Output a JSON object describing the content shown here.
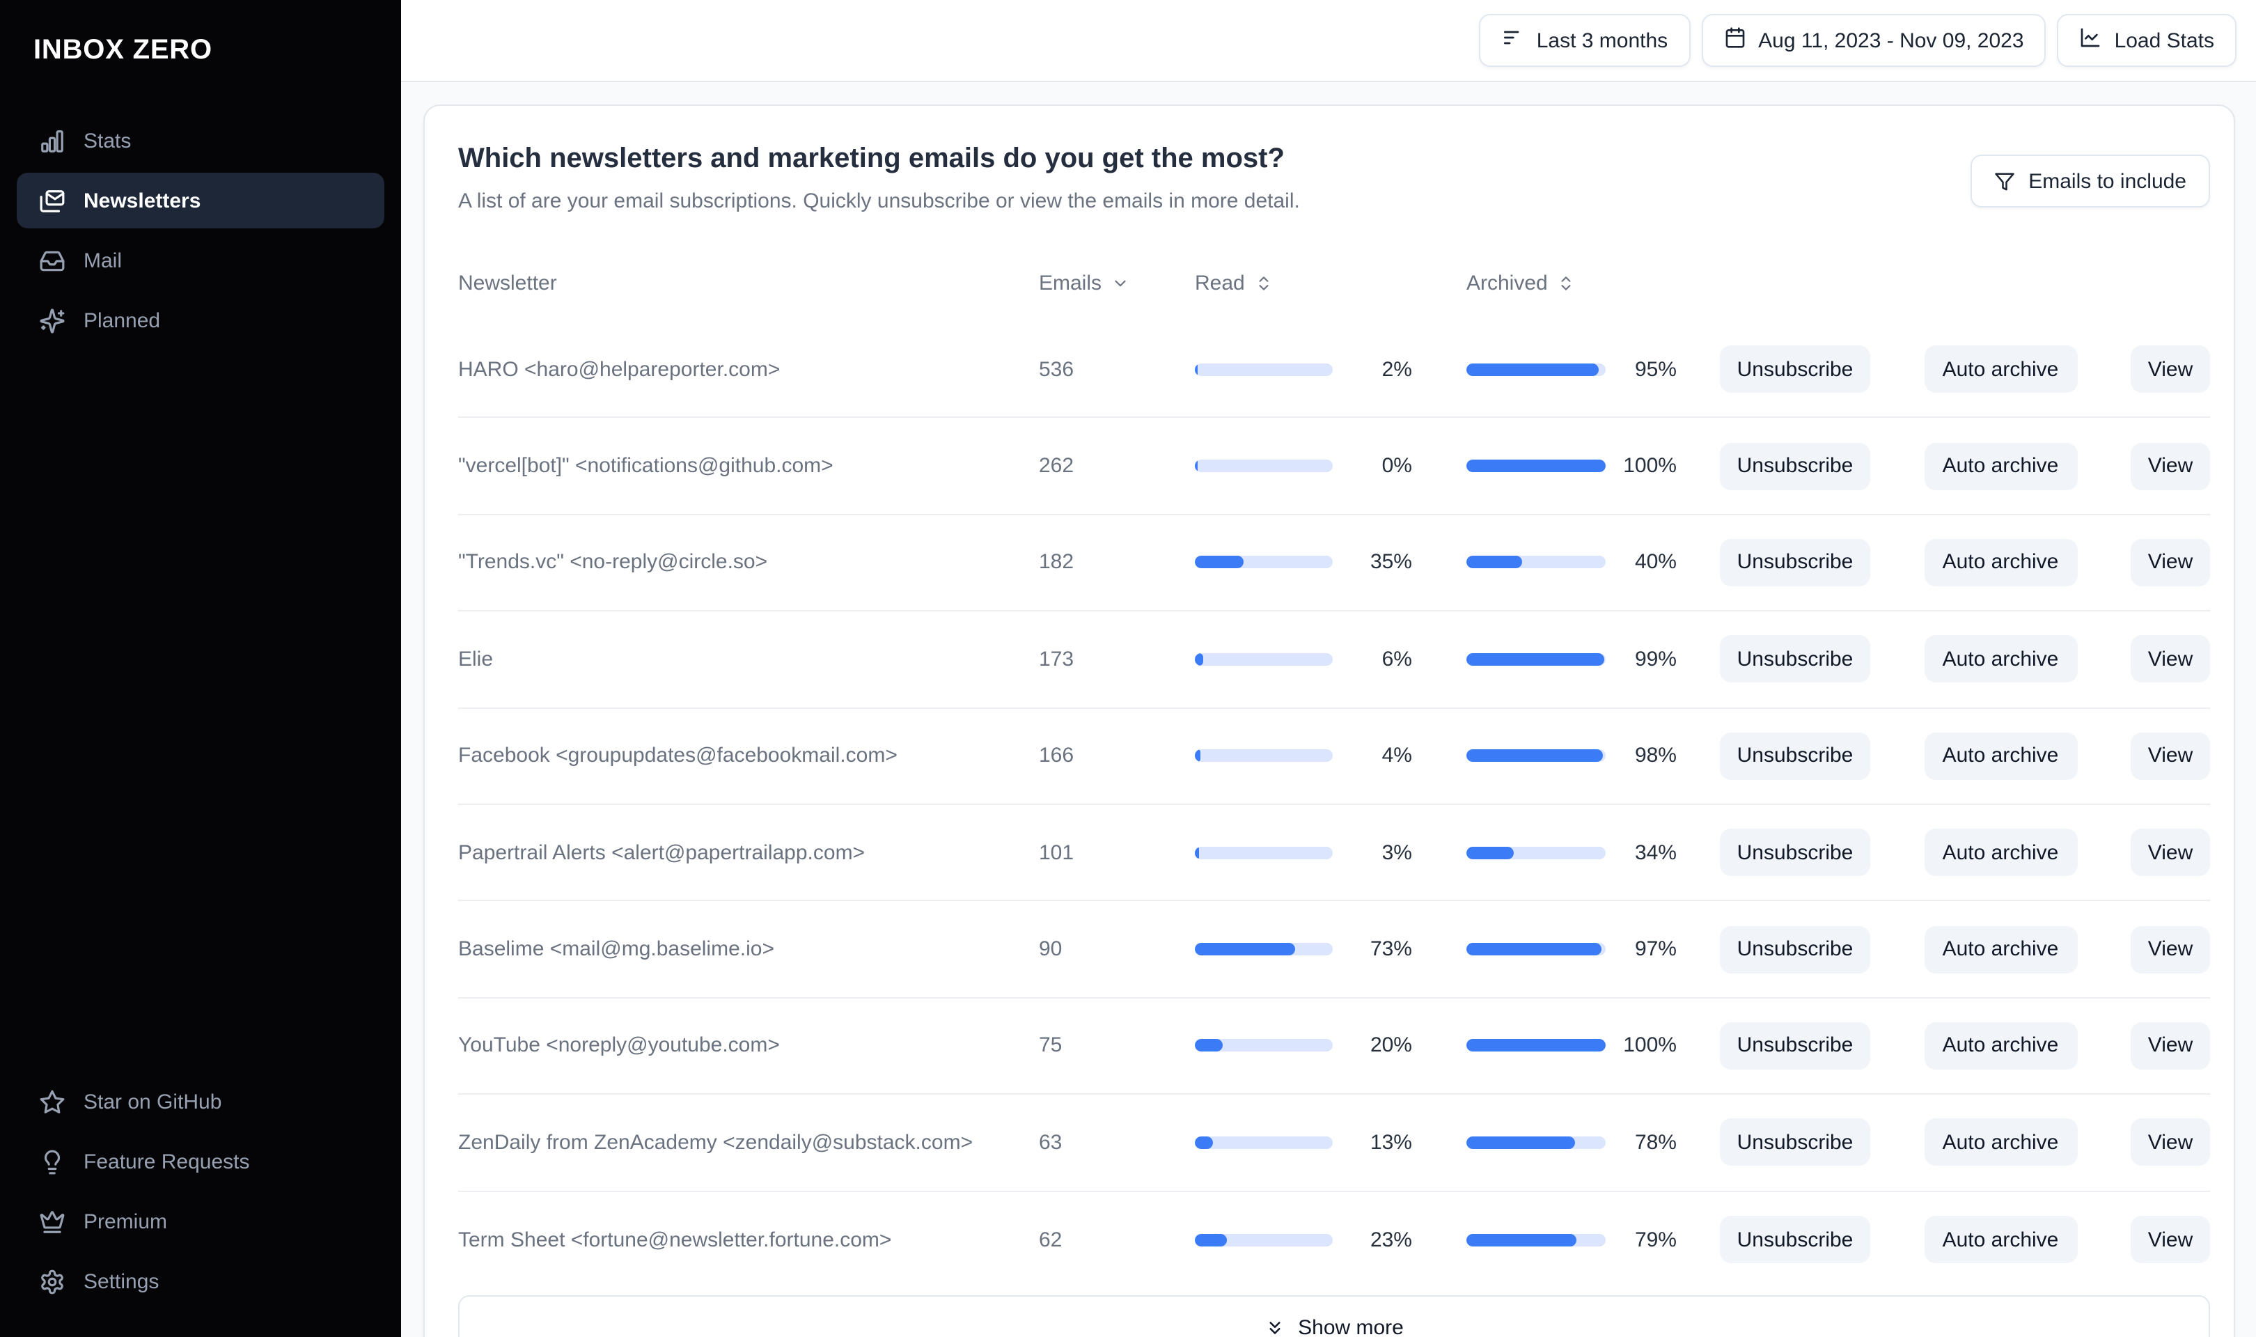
{
  "brand": "INBOX ZERO",
  "sidebar": {
    "items": [
      {
        "label": "Stats",
        "icon": "bar-chart-icon",
        "active": false
      },
      {
        "label": "Newsletters",
        "icon": "newsletters-icon",
        "active": true
      },
      {
        "label": "Mail",
        "icon": "inbox-icon",
        "active": false
      },
      {
        "label": "Planned",
        "icon": "sparkles-icon",
        "active": false
      }
    ],
    "footer_items": [
      {
        "label": "Star on GitHub",
        "icon": "star-icon"
      },
      {
        "label": "Feature Requests",
        "icon": "lightbulb-icon"
      },
      {
        "label": "Premium",
        "icon": "crown-icon"
      },
      {
        "label": "Settings",
        "icon": "gear-icon"
      }
    ]
  },
  "topbar": {
    "range_button": "Last 3 months",
    "date_button": "Aug 11, 2023 - Nov 09, 2023",
    "load_button": "Load Stats"
  },
  "card": {
    "title": "Which newsletters and marketing emails do you get the most?",
    "subtitle": "A list of are your email subscriptions. Quickly unsubscribe or view the emails in more detail.",
    "filter_button": "Emails to include",
    "show_more": "Show more"
  },
  "table": {
    "headers": {
      "newsletter": "Newsletter",
      "emails": "Emails",
      "read": "Read",
      "archived": "Archived"
    },
    "actions": {
      "unsubscribe": "Unsubscribe",
      "auto_archive": "Auto archive",
      "view": "View"
    },
    "rows": [
      {
        "newsletter": "HARO <haro@helpareporter.com>",
        "emails": "536",
        "read_pct": 2,
        "archived_pct": 95
      },
      {
        "newsletter": "\"vercel[bot]\" <notifications@github.com>",
        "emails": "262",
        "read_pct": 0,
        "archived_pct": 100
      },
      {
        "newsletter": "\"Trends.vc\" <no-reply@circle.so>",
        "emails": "182",
        "read_pct": 35,
        "archived_pct": 40
      },
      {
        "newsletter": "Elie",
        "emails": "173",
        "read_pct": 6,
        "archived_pct": 99
      },
      {
        "newsletter": "Facebook <groupupdates@facebookmail.com>",
        "emails": "166",
        "read_pct": 4,
        "archived_pct": 98
      },
      {
        "newsletter": "Papertrail Alerts <alert@papertrailapp.com>",
        "emails": "101",
        "read_pct": 3,
        "archived_pct": 34
      },
      {
        "newsletter": "Baselime <mail@mg.baselime.io>",
        "emails": "90",
        "read_pct": 73,
        "archived_pct": 97
      },
      {
        "newsletter": "YouTube <noreply@youtube.com>",
        "emails": "75",
        "read_pct": 20,
        "archived_pct": 100
      },
      {
        "newsletter": "ZenDaily from ZenAcademy <zendaily@substack.com>",
        "emails": "63",
        "read_pct": 13,
        "archived_pct": 78
      },
      {
        "newsletter": "Term Sheet <fortune@newsletter.fortune.com>",
        "emails": "62",
        "read_pct": 23,
        "archived_pct": 79
      }
    ]
  },
  "colors": {
    "accent": "#3b7cf6",
    "bar_track": "#dbe5fd",
    "sidebar_bg": "#050507",
    "active_nav_bg": "#1d2737",
    "button_bg": "#f1f5f9"
  }
}
